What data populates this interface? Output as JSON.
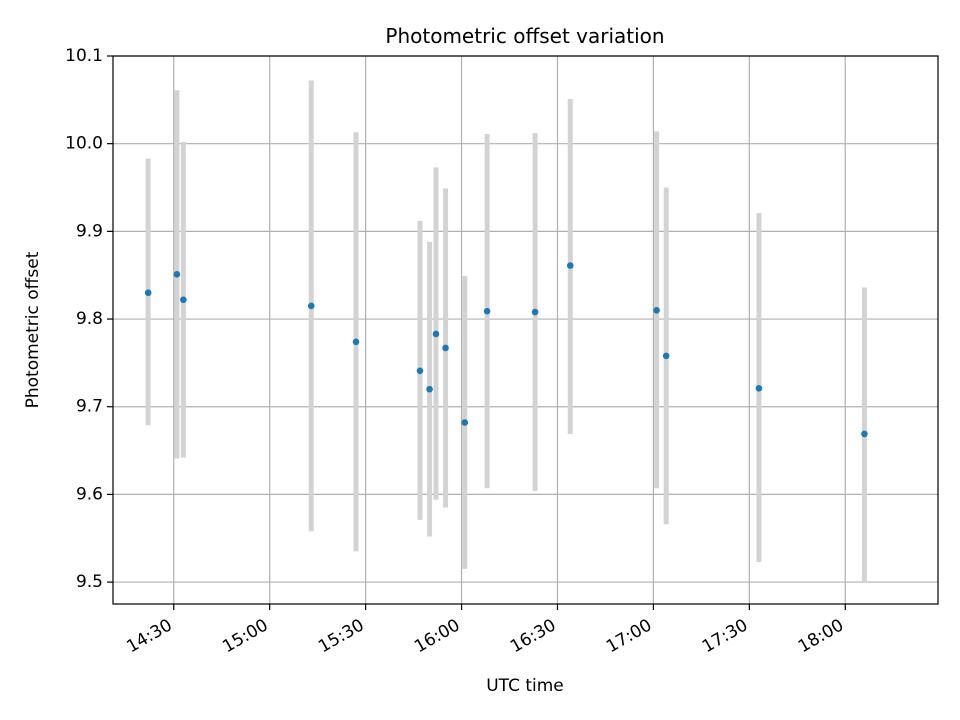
{
  "chart_data": {
    "type": "scatter",
    "title": "Photometric offset variation",
    "xlabel": "UTC time",
    "ylabel": "Photometric offset",
    "xlim": [
      "14:11",
      "18:29"
    ],
    "ylim": [
      9.475,
      10.1
    ],
    "x_ticks": [
      "14:30",
      "15:00",
      "15:30",
      "16:00",
      "16:30",
      "17:00",
      "17:30",
      "18:00"
    ],
    "y_ticks": [
      "9.5",
      "9.6",
      "9.7",
      "9.8",
      "9.9",
      "10.0",
      "10.1"
    ],
    "grid": true,
    "point_color": "#1f77b4",
    "errorbar_color": "#d3d3d3",
    "points": [
      {
        "x": "14:22",
        "y": 9.83,
        "ylow": 9.679,
        "yhigh": 9.983
      },
      {
        "x": "14:31",
        "y": 9.851,
        "ylow": 9.641,
        "yhigh": 10.061
      },
      {
        "x": "14:33",
        "y": 9.822,
        "ylow": 9.642,
        "yhigh": 10.002
      },
      {
        "x": "15:13",
        "y": 9.815,
        "ylow": 9.558,
        "yhigh": 10.072
      },
      {
        "x": "15:27",
        "y": 9.774,
        "ylow": 9.535,
        "yhigh": 10.013
      },
      {
        "x": "15:47",
        "y": 9.741,
        "ylow": 9.571,
        "yhigh": 9.912
      },
      {
        "x": "15:50",
        "y": 9.72,
        "ylow": 9.552,
        "yhigh": 9.888
      },
      {
        "x": "15:52",
        "y": 9.783,
        "ylow": 9.594,
        "yhigh": 9.973
      },
      {
        "x": "15:55",
        "y": 9.767,
        "ylow": 9.585,
        "yhigh": 9.949
      },
      {
        "x": "16:01",
        "y": 9.682,
        "ylow": 9.515,
        "yhigh": 9.849
      },
      {
        "x": "16:08",
        "y": 9.809,
        "ylow": 9.607,
        "yhigh": 10.011
      },
      {
        "x": "16:23",
        "y": 9.808,
        "ylow": 9.604,
        "yhigh": 10.012
      },
      {
        "x": "16:34",
        "y": 9.861,
        "ylow": 9.669,
        "yhigh": 10.051
      },
      {
        "x": "17:01",
        "y": 9.81,
        "ylow": 9.607,
        "yhigh": 10.014
      },
      {
        "x": "17:04",
        "y": 9.758,
        "ylow": 9.566,
        "yhigh": 9.95
      },
      {
        "x": "17:33",
        "y": 9.721,
        "ylow": 9.523,
        "yhigh": 9.921
      },
      {
        "x": "18:06",
        "y": 9.669,
        "ylow": 9.5,
        "yhigh": 9.836
      }
    ]
  }
}
